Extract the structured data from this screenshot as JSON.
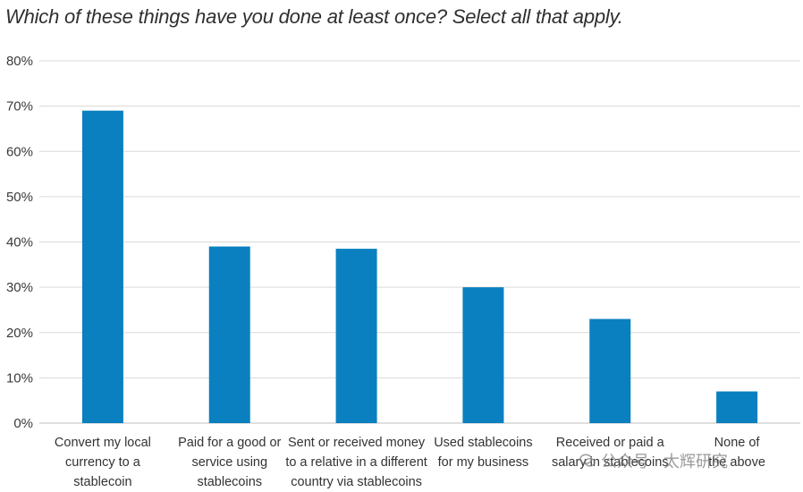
{
  "chart_data": {
    "type": "bar",
    "title": "Which of these things have you done at least once? Select all that apply.",
    "xlabel": "",
    "ylabel": "",
    "ylim": [
      0,
      80
    ],
    "yticks": [
      0,
      10,
      20,
      30,
      40,
      50,
      60,
      70,
      80
    ],
    "ytick_labels": [
      "0%",
      "10%",
      "20%",
      "30%",
      "40%",
      "50%",
      "60%",
      "70%",
      "80%"
    ],
    "grid": true,
    "legend": "none",
    "categories": [
      [
        "Convert my local",
        "currency to a",
        "stablecoin"
      ],
      [
        "Paid for a good or",
        "service using",
        "stablecoins"
      ],
      [
        "Sent or received money",
        "to a relative in a different",
        "country via stablecoins"
      ],
      [
        "Used stablecoins",
        "for my business"
      ],
      [
        "Received or paid a",
        "salary in stablecoins"
      ],
      [
        "None of",
        "the above"
      ]
    ],
    "values": [
      69,
      39,
      38.5,
      30,
      23,
      7
    ],
    "bar_color": "#0a80c0",
    "grid_color": "#d9d9d9",
    "axis_color": "#bfbfbf"
  },
  "watermark": {
    "text": "公众号 · 太辉研究",
    "icon": "wechat-icon"
  }
}
